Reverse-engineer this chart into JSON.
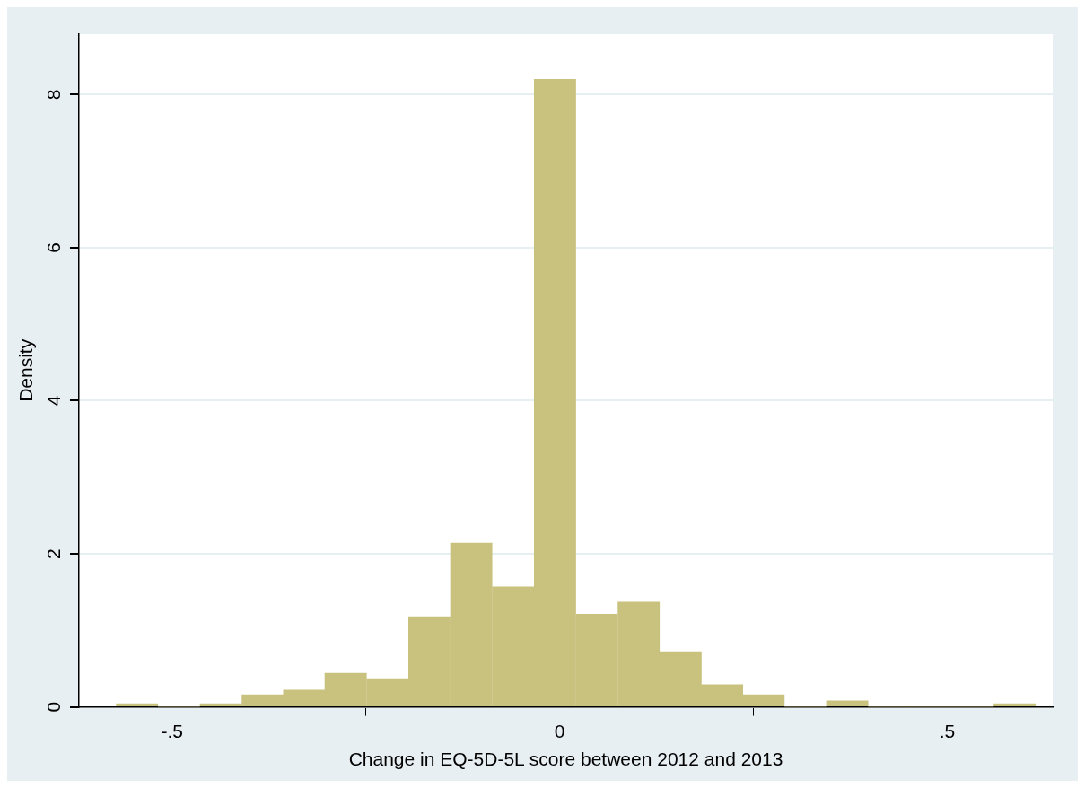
{
  "chart_data": {
    "type": "histogram",
    "xlabel": "Change in EQ-5D-5L score between 2012 and 2013",
    "ylabel": "Density",
    "bins": [
      -0.572,
      -0.518,
      -0.464,
      -0.41,
      -0.356,
      -0.303,
      -0.249,
      -0.195,
      -0.141,
      -0.087,
      -0.033,
      0.021,
      0.075,
      0.129,
      0.183,
      0.236,
      0.29,
      0.344,
      0.398,
      0.452,
      0.506,
      0.56,
      0.614
    ],
    "values": [
      0.04,
      0,
      0.04,
      0.16,
      0.22,
      0.44,
      0.37,
      1.18,
      2.14,
      1.57,
      8.2,
      1.21,
      1.37,
      0.72,
      0.29,
      0.16,
      0,
      0.08,
      0,
      0,
      0,
      0.04
    ],
    "color": "#c9c17e",
    "xlim": [
      -0.62,
      0.636
    ],
    "xticks": [
      {
        "value": -0.5,
        "label": "-.5"
      },
      {
        "value": 0,
        "label": "0"
      },
      {
        "value": 0.5,
        "label": ".5"
      }
    ],
    "ylim": [
      0,
      8.79
    ],
    "yticks": [
      0,
      2,
      4,
      6,
      8
    ],
    "grid": "y",
    "legend": false
  }
}
